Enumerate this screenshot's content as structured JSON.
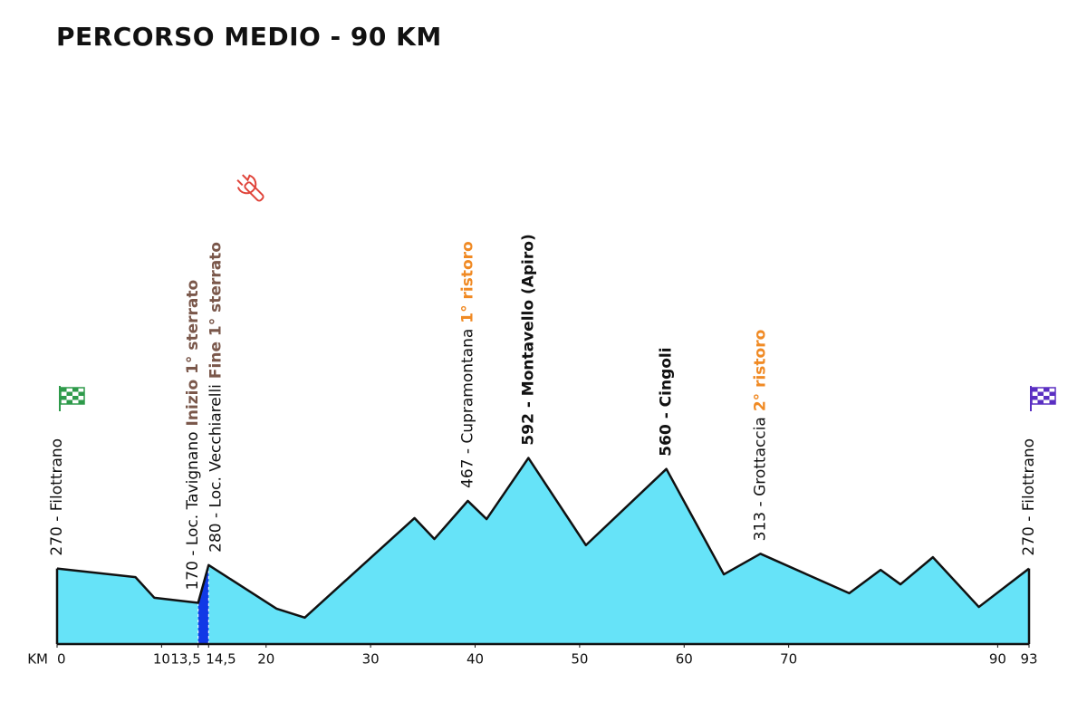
{
  "chart_data": {
    "type": "area",
    "title": "PERCORSO MEDIO - 90 KM",
    "xlabel": "KM",
    "x": [
      0,
      7.5,
      9.3,
      13.5,
      14.5,
      21,
      23.7,
      34.2,
      36.1,
      39.3,
      41.1,
      45.1,
      50.6,
      58.3,
      63.8,
      67.3,
      75.8,
      78.8,
      80.7,
      83.8,
      88.2,
      93
    ],
    "values": [
      270,
      245,
      185,
      170,
      280,
      153,
      127,
      417,
      356,
      467,
      414,
      592,
      338,
      560,
      253,
      313,
      198,
      266,
      224,
      303,
      158,
      270
    ],
    "color": "#66e3f8",
    "highlight": {
      "from": 13.5,
      "to": 14.5,
      "color": "#1139e6"
    },
    "xlim": [
      0,
      93
    ],
    "ylim": [
      50,
      650
    ],
    "xticks": [
      0,
      10,
      {
        "value": 13.5,
        "label": "13,5"
      },
      {
        "value": 14.5,
        "label": "14,5"
      },
      20,
      30,
      40,
      50,
      60,
      70,
      90,
      93
    ],
    "annotations": [
      {
        "x": 0,
        "text": "270 - Filottrano"
      },
      {
        "x": 13.5,
        "text": "170 - Loc. Tavignano",
        "note": "Inizio 1° sterrato",
        "note_color": "#7a574a"
      },
      {
        "x": 14.5,
        "text": "280 - Loc. Vecchiarelli",
        "note": "Fine 1° sterrato",
        "note_color": "#7a574a"
      },
      {
        "x": 39.3,
        "text": "467 - Cupramontana",
        "note": "1° ristoro",
        "note_color": "#f08a24"
      },
      {
        "x": 45.1,
        "text": "592 - Montavello (Apiro)",
        "bold": true
      },
      {
        "x": 58.3,
        "text": "560 - Cingoli",
        "bold": true
      },
      {
        "x": 67.3,
        "text": "313 - Grottaccia",
        "note": "2° ristoro",
        "note_color": "#f08a24"
      },
      {
        "x": 93,
        "text": "270 - Filottrano"
      }
    ]
  }
}
